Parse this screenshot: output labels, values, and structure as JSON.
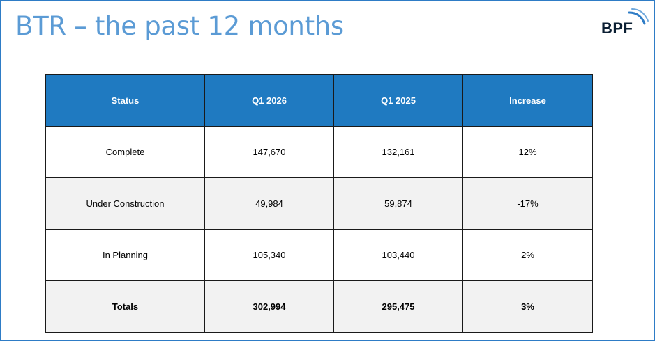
{
  "slide": {
    "title": "BTR – the past 12 months",
    "logo_text": "BPF",
    "accent_color": "#2e7cc6",
    "title_color": "#5b9bd5",
    "header_color": "#1f7ac1"
  },
  "table": {
    "headers": [
      "Status",
      "Q1 2026",
      "Q1 2025",
      "Increase"
    ],
    "rows": [
      [
        "Complete",
        "147,670",
        "132,161",
        "12%"
      ],
      [
        "Under Construction",
        "49,984",
        "59,874",
        "-17%"
      ],
      [
        "In Planning",
        "105,340",
        "103,440",
        "2%"
      ],
      [
        "Totals",
        "302,994",
        "295,475",
        "3%"
      ]
    ]
  }
}
